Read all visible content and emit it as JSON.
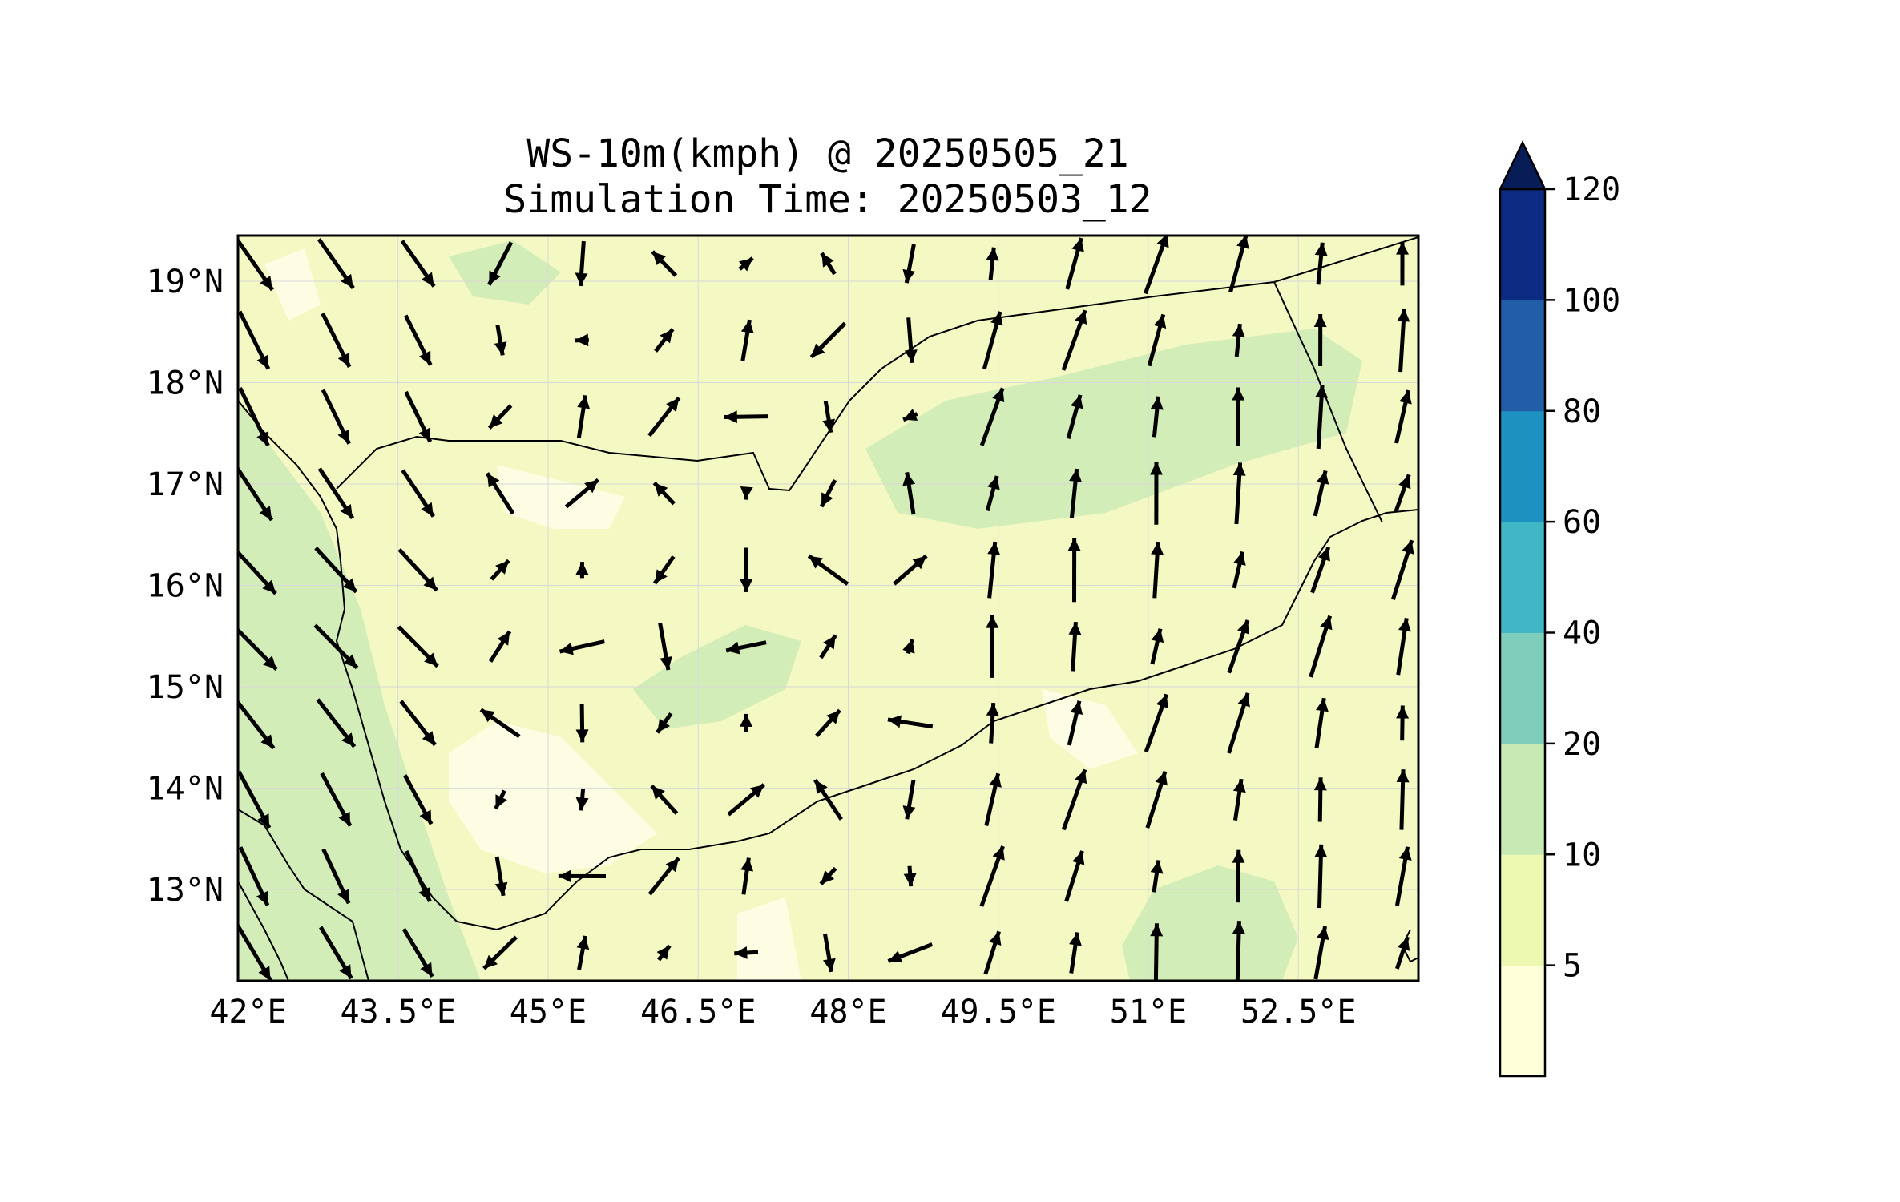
{
  "title": {
    "line1": "WS-10m(kmph) @ 20250505_21",
    "line2": "Simulation Time: 20250503_12"
  },
  "map": {
    "lon_range": [
      41.9,
      53.7
    ],
    "lat_range": [
      12.1,
      19.45
    ],
    "x_ticks": [
      {
        "value": 42,
        "label": "42°E"
      },
      {
        "value": 43.5,
        "label": "43.5°E"
      },
      {
        "value": 45,
        "label": "45°E"
      },
      {
        "value": 46.5,
        "label": "46.5°E"
      },
      {
        "value": 48,
        "label": "48°E"
      },
      {
        "value": 49.5,
        "label": "49.5°E"
      },
      {
        "value": 51,
        "label": "51°E"
      },
      {
        "value": 52.5,
        "label": "52.5°E"
      }
    ],
    "y_ticks": [
      {
        "value": 19,
        "label": "19°N"
      },
      {
        "value": 18,
        "label": "18°N"
      },
      {
        "value": 17,
        "label": "17°N"
      },
      {
        "value": 16,
        "label": "16°N"
      },
      {
        "value": 15,
        "label": "15°N"
      },
      {
        "value": 14,
        "label": "14°N"
      },
      {
        "value": 13,
        "label": "13°N"
      }
    ],
    "gridlines": true,
    "base_fill": "#f4f9c3"
  },
  "colorbar": {
    "ticks": [
      "120",
      "100",
      "80",
      "60",
      "40",
      "20",
      "10",
      "5"
    ],
    "colors": [
      "#ffffd9",
      "#edf8b1",
      "#c7e9b4",
      "#7fcdbb",
      "#41b6c4",
      "#1d91c0",
      "#225ea8",
      "#0c2c84"
    ],
    "extend_color": "#081d58",
    "extend": "max"
  },
  "chart_data": {
    "type": "wind-vector-field",
    "variable": "WS-10m(kmph)",
    "valid_time": "20250505_21",
    "simulation_time": "20250503_12",
    "levels": [
      5,
      10,
      20,
      40,
      60,
      80,
      100,
      120
    ]
  }
}
